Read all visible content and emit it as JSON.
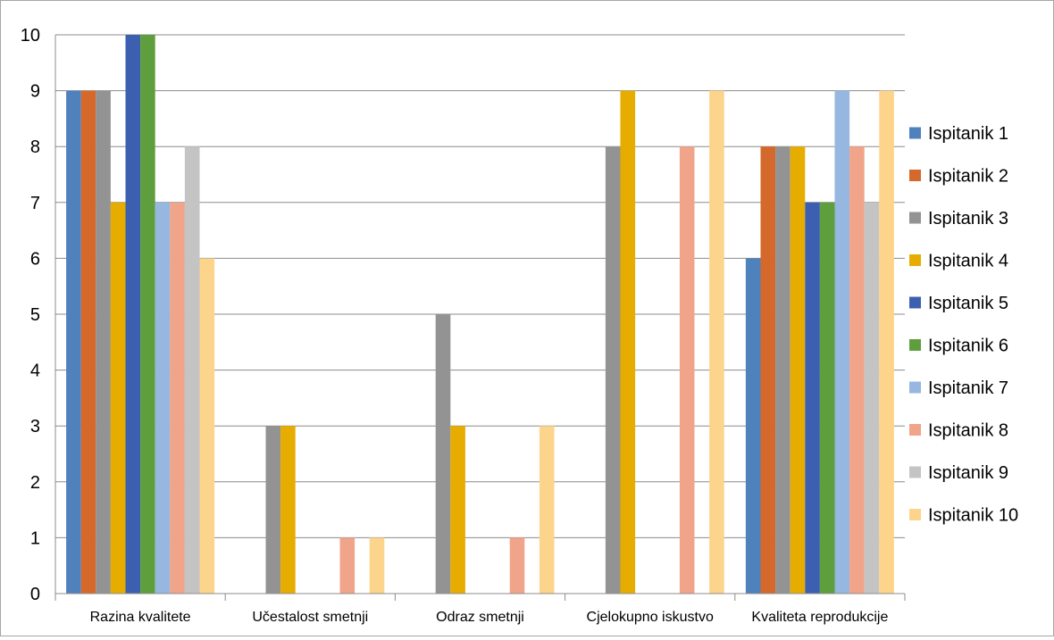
{
  "chart_data": {
    "type": "bar",
    "categories": [
      "Razina kvalitete",
      "Učestalost smetnji",
      "Odraz smetnji",
      "Cjelokupno iskustvo",
      "Kvaliteta reprodukcije"
    ],
    "ylim": [
      0,
      10
    ],
    "yticks": [
      0,
      1,
      2,
      3,
      4,
      5,
      6,
      7,
      8,
      9,
      10
    ],
    "grid": true,
    "legend_position": "right",
    "series": [
      {
        "name": "Ispitanik 1",
        "color": "#4f81bd",
        "values": [
          9,
          0,
          0,
          0,
          6
        ]
      },
      {
        "name": "Ispitanik 2",
        "color": "#d4692b",
        "values": [
          9,
          0,
          0,
          0,
          8
        ]
      },
      {
        "name": "Ispitanik 3",
        "color": "#939393",
        "values": [
          9,
          3,
          5,
          8,
          8
        ]
      },
      {
        "name": "Ispitanik 4",
        "color": "#e6ac00",
        "values": [
          7,
          3,
          3,
          9,
          8
        ]
      },
      {
        "name": "Ispitanik 5",
        "color": "#3d5fb0",
        "values": [
          10,
          0,
          0,
          0,
          7
        ]
      },
      {
        "name": "Ispitanik 6",
        "color": "#5f9e3d",
        "values": [
          10,
          0,
          0,
          0,
          7
        ]
      },
      {
        "name": "Ispitanik 7",
        "color": "#95b7e0",
        "values": [
          7,
          0,
          0,
          0,
          9
        ]
      },
      {
        "name": "Ispitanik 8",
        "color": "#f0a48a",
        "values": [
          7,
          1,
          1,
          8,
          8
        ]
      },
      {
        "name": "Ispitanik 9",
        "color": "#c4c4c4",
        "values": [
          8,
          0,
          0,
          0,
          7
        ]
      },
      {
        "name": "Ispitanik 10",
        "color": "#fdd48b",
        "values": [
          6,
          1,
          3,
          9,
          9
        ]
      }
    ]
  }
}
